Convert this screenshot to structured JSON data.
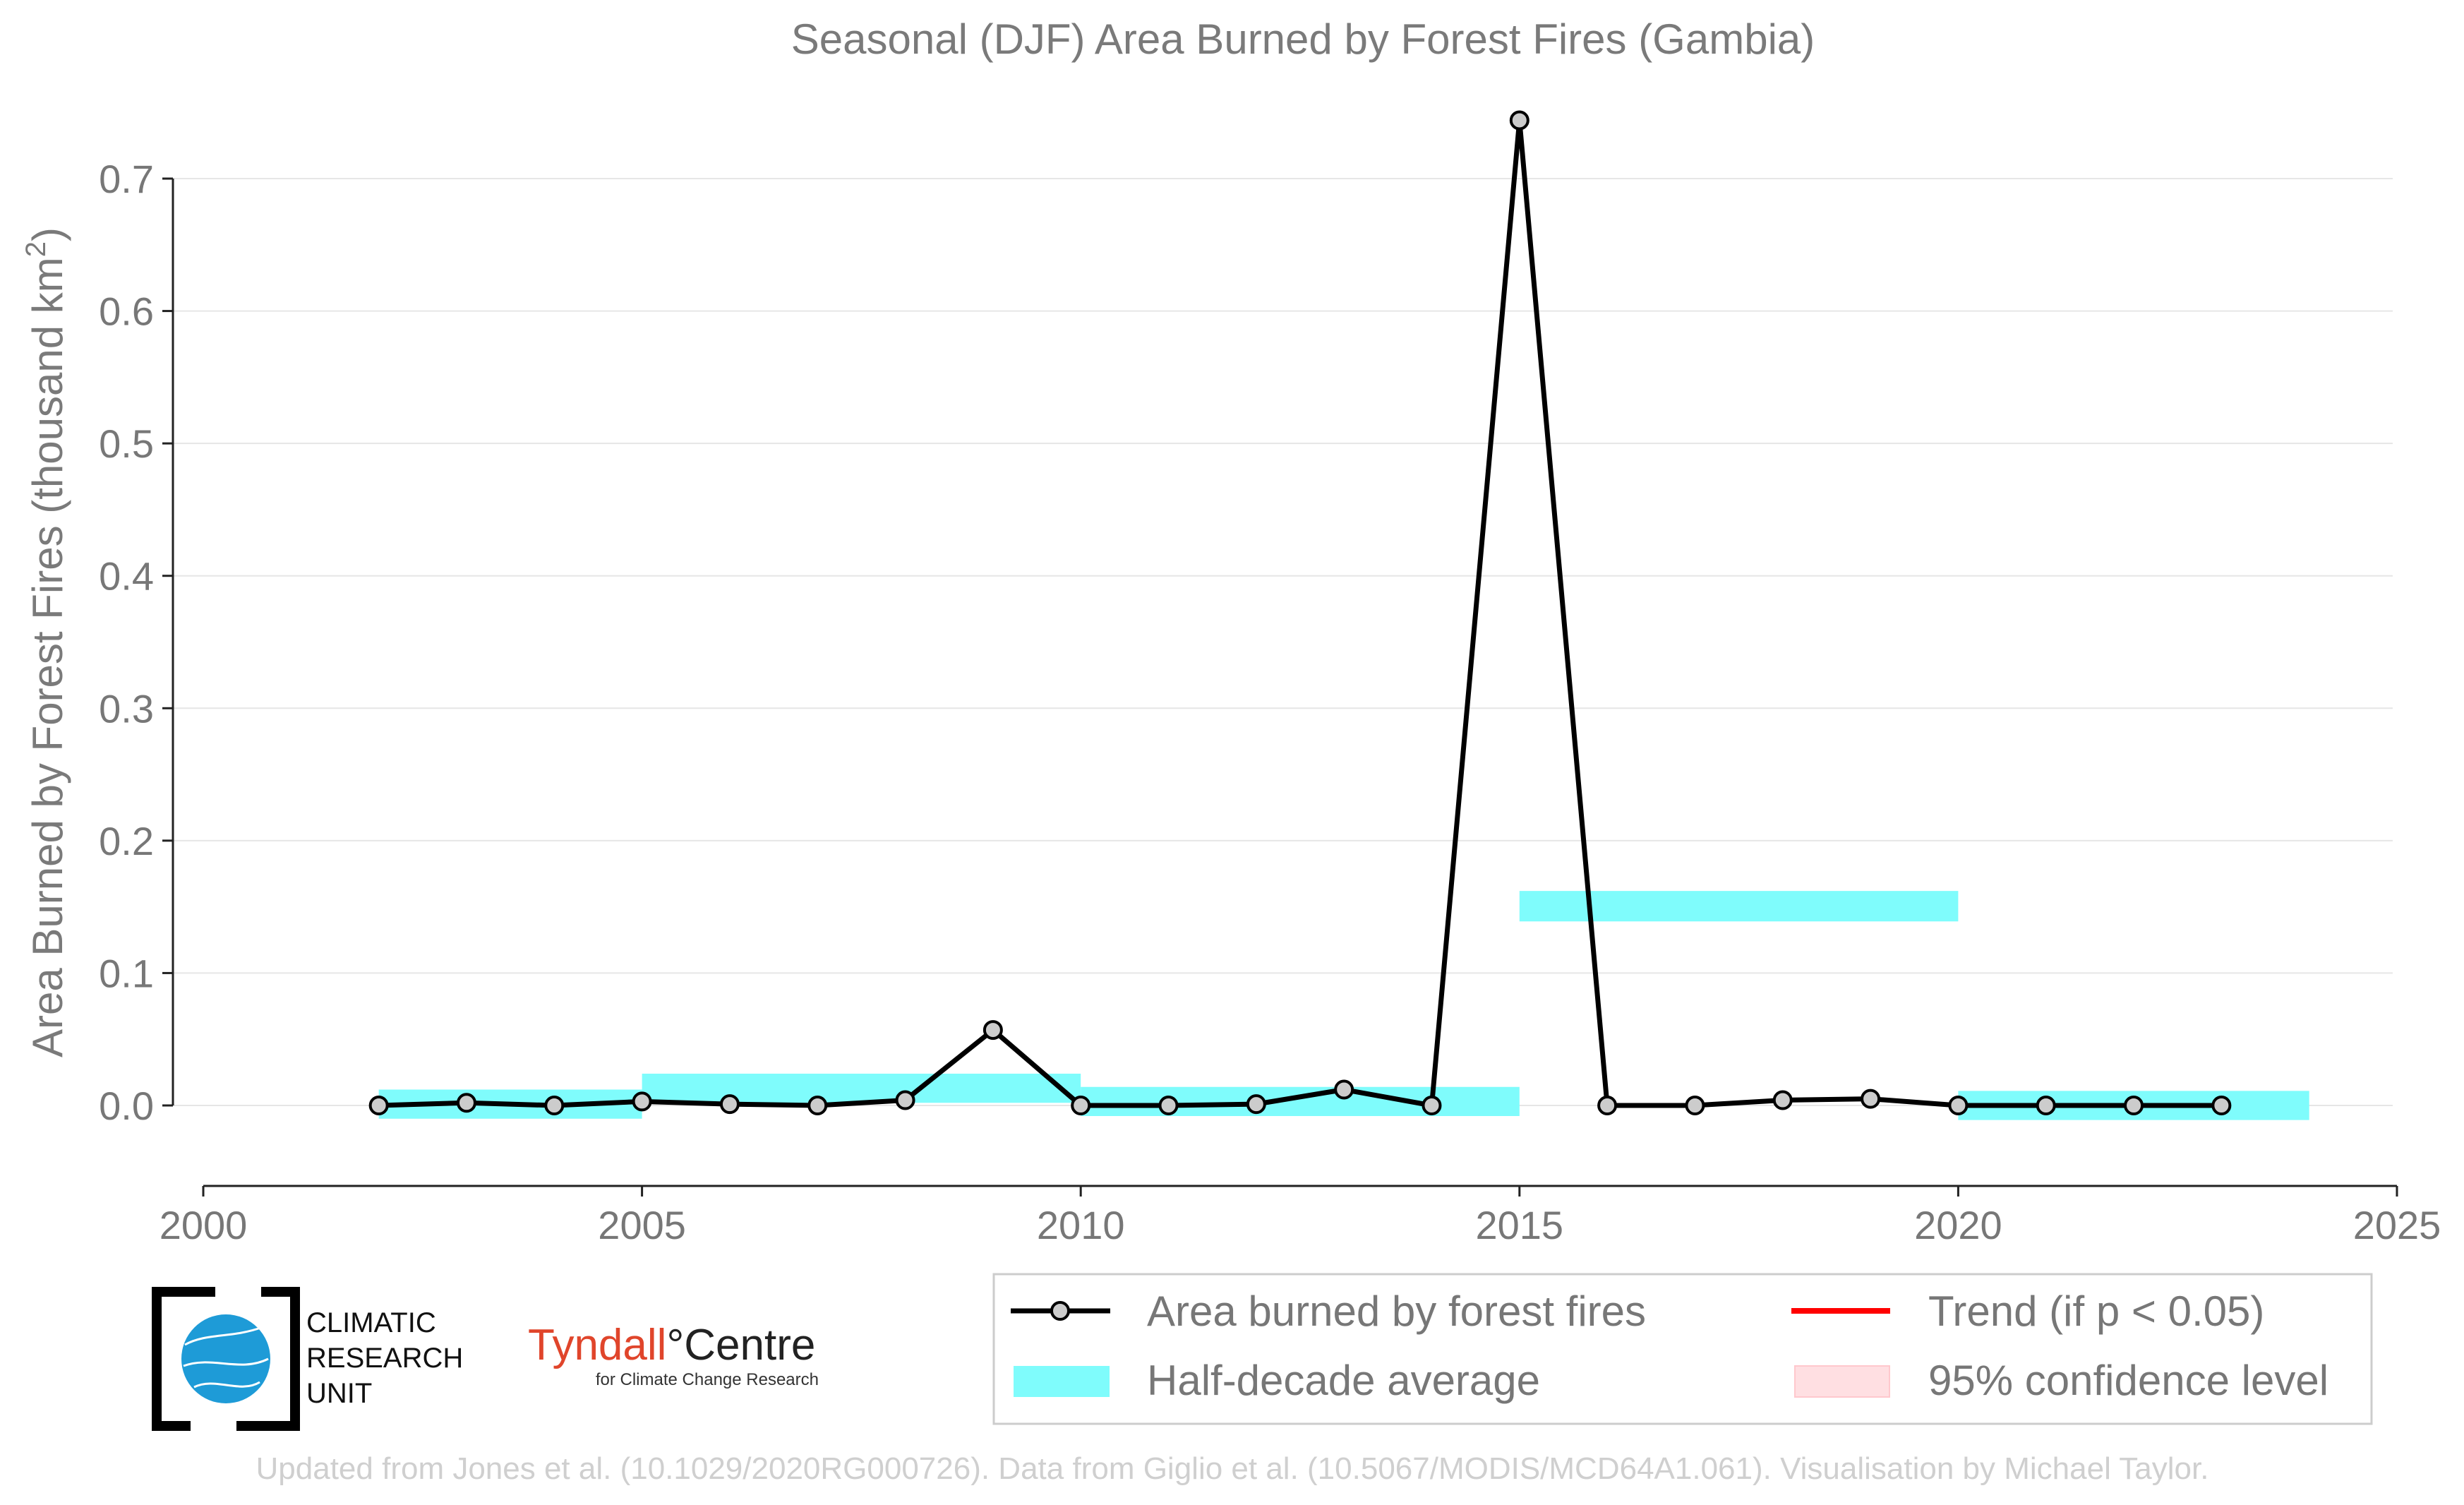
{
  "chart_data": {
    "type": "line",
    "title": "Seasonal (DJF) Area Burned by Forest Fires (Gambia)",
    "ylabel": "Area Burned by Forest Fires (thousand km",
    "ylabel_sup": "2",
    "ylabel_close": ")",
    "xlabel": "",
    "xlim": [
      2000,
      2025
    ],
    "ylim": [
      -0.06,
      0.75
    ],
    "x_ticks": [
      2000,
      2005,
      2010,
      2015,
      2020,
      2025
    ],
    "x_tick_labels": [
      "2000",
      "2005",
      "2010",
      "2015",
      "2020",
      "2025"
    ],
    "y_ticks": [
      0.0,
      0.1,
      0.2,
      0.3,
      0.4,
      0.5,
      0.6,
      0.7
    ],
    "y_tick_labels": [
      "0.0",
      "0.1",
      "0.2",
      "0.3",
      "0.4",
      "0.5",
      "0.6",
      "0.7"
    ],
    "grid": "horizontal",
    "series": [
      {
        "name": "Area burned by forest fires",
        "color": "#000000",
        "marker_fill": "#cccccc",
        "x": [
          2002,
          2003,
          2004,
          2005,
          2006,
          2007,
          2008,
          2009,
          2010,
          2011,
          2012,
          2013,
          2014,
          2015,
          2016,
          2017,
          2018,
          2019,
          2020,
          2021,
          2022,
          2023
        ],
        "y": [
          0.0,
          0.002,
          0.0,
          0.003,
          0.001,
          0.0,
          0.004,
          0.057,
          0.0,
          0.0,
          0.001,
          0.012,
          0.0,
          0.744,
          0.0,
          0.0,
          0.004,
          0.005,
          0.0,
          0.0,
          0.0,
          0.0
        ]
      }
    ],
    "half_decade_average": {
      "name": "Half-decade average",
      "color": "#7ffcfc",
      "segments": [
        {
          "x0": 2002,
          "x1": 2005,
          "y0": -0.01,
          "y1": 0.012
        },
        {
          "x0": 2005,
          "x1": 2010,
          "y0": 0.002,
          "y1": 0.024
        },
        {
          "x0": 2010,
          "x1": 2015,
          "y0": -0.008,
          "y1": 0.014
        },
        {
          "x0": 2015,
          "x1": 2020,
          "y0": 0.139,
          "y1": 0.162
        },
        {
          "x0": 2020,
          "x1": 2024,
          "y0": -0.011,
          "y1": 0.011
        }
      ]
    },
    "legend": {
      "placement": "bottom-right",
      "entries": [
        {
          "label": "Area burned by forest fires",
          "kind": "line-marker",
          "color": "#000000"
        },
        {
          "label": "Trend (if p < 0.05)",
          "kind": "line",
          "color": "#ff0000"
        },
        {
          "label": "Half-decade average",
          "kind": "patch",
          "color": "#7ffcfc"
        },
        {
          "label": "95% confidence level",
          "kind": "patch",
          "color": "#ffdfe2"
        }
      ]
    }
  },
  "logos": {
    "cru": [
      "CLIMATIC",
      "RESEARCH",
      "UNIT"
    ],
    "tyndall_a": "Tyndall",
    "tyndall_b": "°Centre",
    "tyndall_sub": "for Climate Change Research"
  },
  "credit": "Updated from Jones et al. (10.1029/2020RG000726). Data from Giglio et al. (10.5067/MODIS/MCD64A1.061). Visualisation by Michael Taylor."
}
